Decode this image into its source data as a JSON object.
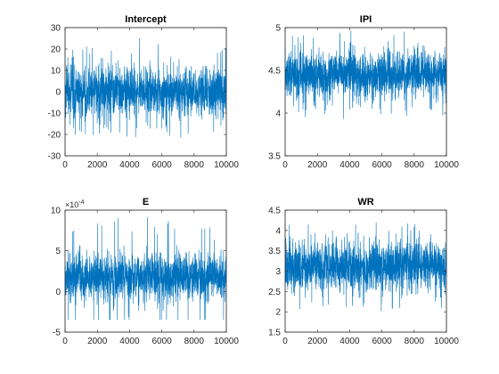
{
  "chart_data": [
    {
      "type": "line",
      "title": "Intercept",
      "x": {
        "min": 0,
        "max": 10000
      },
      "xlim": [
        0,
        10000
      ],
      "ylim": [
        -30,
        30
      ],
      "xticks": [
        0,
        2000,
        4000,
        6000,
        8000,
        10000
      ],
      "yticks": [
        -30,
        -20,
        -10,
        0,
        10,
        20,
        30
      ],
      "ytick_labels": [
        "-30",
        "-20",
        "-10",
        "0",
        "10",
        "20",
        "30"
      ],
      "axis_exponent": "",
      "series": [
        {
          "values_summary": {
            "n": 10000,
            "mean": 0,
            "sd": 6.5,
            "min": -29,
            "max": 25
          }
        }
      ]
    },
    {
      "type": "line",
      "title": "IPI",
      "xlim": [
        0,
        10000
      ],
      "ylim": [
        3.5,
        5
      ],
      "xticks": [
        0,
        2000,
        4000,
        6000,
        8000,
        10000
      ],
      "yticks": [
        3.5,
        4,
        4.5,
        5
      ],
      "ytick_labels": [
        "3.5",
        "4",
        "4.5",
        "5"
      ],
      "axis_exponent": "",
      "series": [
        {
          "values_summary": {
            "n": 10000,
            "mean": 4.45,
            "sd": 0.15,
            "min": 3.78,
            "max": 5.05
          }
        }
      ]
    },
    {
      "type": "line",
      "title": "E",
      "xlim": [
        0,
        10000
      ],
      "ylim": [
        -5,
        10
      ],
      "xticks": [
        0,
        2000,
        4000,
        6000,
        8000,
        10000
      ],
      "yticks": [
        -5,
        0,
        5,
        10
      ],
      "ytick_labels": [
        "-5",
        "0",
        "5",
        "10"
      ],
      "axis_exponent": "× 10^-4",
      "series": [
        {
          "values_summary": {
            "n": 10000,
            "mean": 1.8,
            "sd": 1.6,
            "min": -3.5,
            "max": 10.3
          }
        }
      ]
    },
    {
      "type": "line",
      "title": "WR",
      "xlim": [
        0,
        10000
      ],
      "ylim": [
        1.5,
        4.5
      ],
      "xticks": [
        0,
        2000,
        4000,
        6000,
        8000,
        10000
      ],
      "yticks": [
        1.5,
        2,
        2.5,
        3,
        3.5,
        4,
        4.5
      ],
      "ytick_labels": [
        "1.5",
        "2",
        "2.5",
        "3",
        "3.5",
        "4",
        "4.5"
      ],
      "axis_exponent": "",
      "series": [
        {
          "values_summary": {
            "n": 10000,
            "mean": 3.1,
            "sd": 0.35,
            "min": 2.0,
            "max": 4.35
          }
        }
      ]
    }
  ],
  "style": {
    "line_color": "#0072BD",
    "axis_color": "#262626"
  }
}
